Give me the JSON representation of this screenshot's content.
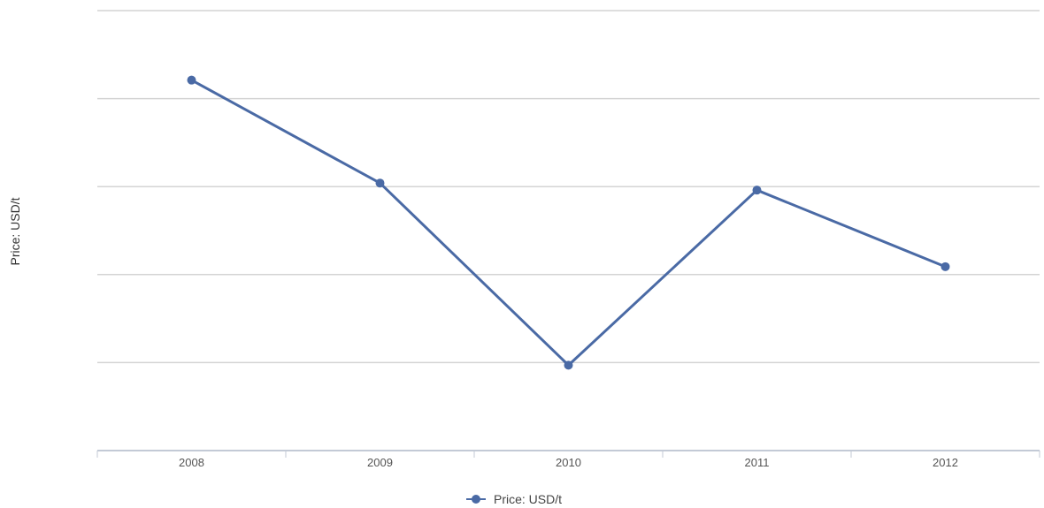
{
  "chart_data": {
    "type": "line",
    "title": "",
    "xlabel": "",
    "ylabel": "Price: USD/t",
    "categories": [
      "2008",
      "2009",
      "2010",
      "2011",
      "2012"
    ],
    "series": [
      {
        "name": "Price: USD/t",
        "values": [
          4.21,
          3.04,
          0.97,
          2.96,
          2.09
        ]
      }
    ],
    "ylim": [
      0,
      5
    ],
    "y_ticks": [
      0,
      1,
      2,
      3,
      4,
      5
    ],
    "grid": true,
    "legend": "bottom-center",
    "colors": {
      "series": "#4a6aa5",
      "grid": "#d4d4d4",
      "axis": "#c3cad6"
    }
  }
}
